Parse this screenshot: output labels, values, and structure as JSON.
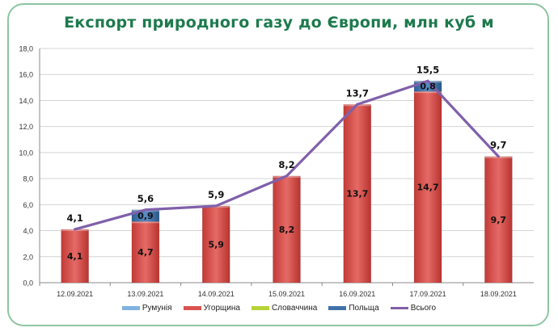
{
  "chart_data": {
    "type": "bar",
    "stacked": true,
    "title": "Експорт природного газу до Європи, млн куб м",
    "categories": [
      "12.09.2021",
      "13.09.2021",
      "14.09.2021",
      "15.09.2021",
      "16.09.2021",
      "17.09.2021",
      "18.09.2021"
    ],
    "ylim": [
      0,
      18
    ],
    "yticks": [
      "0,0",
      "2,0",
      "4,0",
      "6,0",
      "8,0",
      "10,0",
      "12,0",
      "14,0",
      "16,0",
      "18,0"
    ],
    "grid": true,
    "legend_position": "bottom",
    "series": [
      {
        "name": "Румунія",
        "color": "#7fb2e0",
        "values": [
          0,
          0,
          0,
          0,
          0,
          0,
          0
        ],
        "labels": [
          "",
          "",
          "",
          "",
          "",
          "",
          ""
        ]
      },
      {
        "name": "Угорщина",
        "color": "#d9534f",
        "values": [
          4.1,
          4.7,
          5.9,
          8.2,
          13.7,
          14.7,
          9.7
        ],
        "labels": [
          "4,1",
          "4,7",
          "5,9",
          "8,2",
          "13,7",
          "14,7",
          "9,7"
        ]
      },
      {
        "name": "Словаччина",
        "color": "#b5d334",
        "values": [
          0,
          0,
          0,
          0,
          0,
          0,
          0
        ],
        "labels": [
          "",
          "",
          "",
          "",
          "",
          "",
          ""
        ]
      },
      {
        "name": "Польща",
        "color": "#3f72a8",
        "values": [
          0,
          0.9,
          0,
          0,
          0,
          0.8,
          0
        ],
        "labels": [
          "",
          "0,9",
          "",
          "",
          "",
          "0,8",
          ""
        ]
      }
    ],
    "line": {
      "name": "Всього",
      "color": "#8060aa",
      "values": [
        4.1,
        5.6,
        5.9,
        8.2,
        13.7,
        15.5,
        9.7
      ],
      "labels": [
        "4,1",
        "5,6",
        "5,9",
        "8,2",
        "13,7",
        "15,5",
        "9,7"
      ]
    }
  }
}
